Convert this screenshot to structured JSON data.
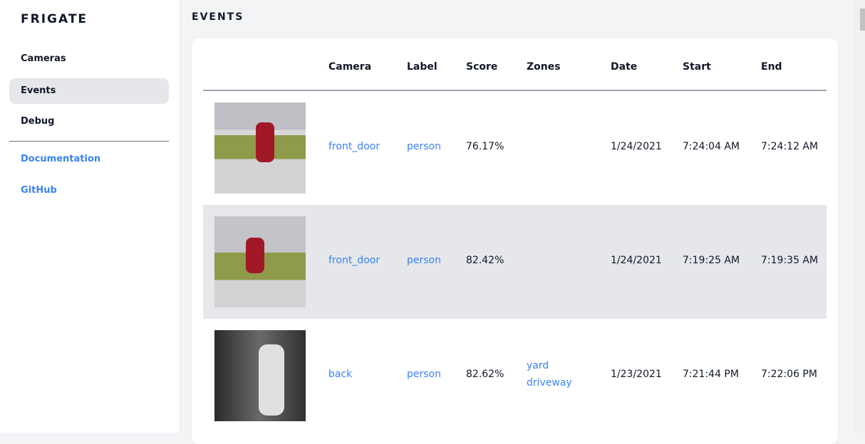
{
  "sidebar": {
    "logo": "FRIGATE",
    "items": [
      {
        "label": "Cameras"
      },
      {
        "label": "Events",
        "active": true
      },
      {
        "label": "Debug"
      }
    ],
    "links": [
      {
        "label": "Documentation"
      },
      {
        "label": "GitHub"
      }
    ]
  },
  "page_title": "EVENTS",
  "table": {
    "columns": [
      "Camera",
      "Label",
      "Score",
      "Zones",
      "Date",
      "Start",
      "End"
    ],
    "rows": [
      {
        "camera": "front_door",
        "label": "person",
        "score": "76.17%",
        "zones": [
          "",
          ""
        ],
        "date": "1/24/2021",
        "start": "7:24:04 AM",
        "end": "7:24:12 AM"
      },
      {
        "camera": "front_door",
        "label": "person",
        "score": "82.42%",
        "zones": [
          "",
          ""
        ],
        "date": "1/24/2021",
        "start": "7:19:25 AM",
        "end": "7:19:35 AM"
      },
      {
        "camera": "back",
        "label": "person",
        "score": "82.62%",
        "zones": [
          "yard",
          "driveway"
        ],
        "date": "1/23/2021",
        "start": "7:21:44 PM",
        "end": "7:22:06 PM"
      }
    ]
  }
}
